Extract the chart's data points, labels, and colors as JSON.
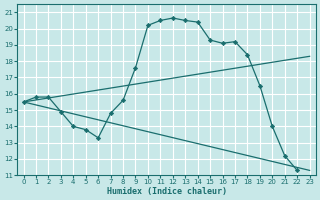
{
  "bg_color": "#c8e8e8",
  "grid_color": "#ffffff",
  "line_color": "#1a6e6e",
  "xlabel": "Humidex (Indice chaleur)",
  "xlim": [
    -0.5,
    23.5
  ],
  "ylim": [
    11,
    21.5
  ],
  "yticks": [
    11,
    12,
    13,
    14,
    15,
    16,
    17,
    18,
    19,
    20,
    21
  ],
  "xticks": [
    0,
    1,
    2,
    3,
    4,
    5,
    6,
    7,
    8,
    9,
    10,
    11,
    12,
    13,
    14,
    15,
    16,
    17,
    18,
    19,
    20,
    21,
    22,
    23
  ],
  "series": [
    {
      "x": [
        0,
        1,
        2,
        3,
        4,
        5,
        6,
        7,
        8,
        9,
        10,
        11,
        12,
        13,
        14,
        15,
        16,
        17,
        18,
        19,
        20,
        21,
        22,
        23
      ],
      "y": [
        15.5,
        15.8,
        15.8,
        14.9,
        14.0,
        13.8,
        13.3,
        14.8,
        15.6,
        17.6,
        20.2,
        20.5,
        20.65,
        20.5,
        20.4,
        19.3,
        19.1,
        19.2,
        18.4,
        16.5,
        14.0,
        12.2,
        11.3,
        null
      ],
      "marker": "D",
      "markersize": 2.2
    },
    {
      "x": [
        0,
        23
      ],
      "y": [
        15.5,
        18.3
      ],
      "marker": null,
      "markersize": 0
    },
    {
      "x": [
        0,
        23
      ],
      "y": [
        15.5,
        11.3
      ],
      "marker": null,
      "markersize": 0
    }
  ]
}
